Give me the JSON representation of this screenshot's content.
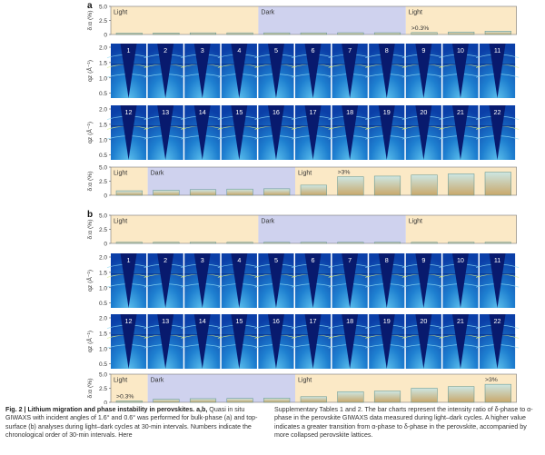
{
  "figure": {
    "panels": [
      {
        "label": "a",
        "top_bars": {
          "ylabel": "δ:α (%)",
          "yticks": [
            "5.0",
            "2.5",
            "0"
          ],
          "phases": [
            {
              "name": "Light",
              "start": 0,
              "end": 4,
              "color": "#fbe9c6"
            },
            {
              "name": "Dark",
              "start": 4,
              "end": 8,
              "color": "#cfd2ee"
            },
            {
              "name": "Light",
              "start": 8,
              "end": 11,
              "color": "#fbe9c6"
            }
          ],
          "annotation": {
            "text": ">0.3%",
            "index": 8
          },
          "values": [
            0.25,
            0.28,
            0.3,
            0.3,
            0.3,
            0.3,
            0.32,
            0.32,
            0.35,
            0.45,
            0.6
          ]
        },
        "image_rows": [
          {
            "ylabel": "qz (Å⁻¹)",
            "yticks": [
              "2.0",
              "1.5",
              "1.0",
              "0.5"
            ],
            "numbers": [
              "1",
              "2",
              "3",
              "4",
              "5",
              "6",
              "7",
              "8",
              "9",
              "10",
              "11"
            ]
          },
          {
            "ylabel": "qz (Å⁻¹)",
            "yticks": [
              "2.0",
              "1.5",
              "1.0",
              "0.5"
            ],
            "numbers": [
              "12",
              "13",
              "14",
              "15",
              "16",
              "17",
              "18",
              "19",
              "20",
              "21",
              "22"
            ]
          }
        ],
        "bottom_bars": {
          "ylabel": "δ:α (%)",
          "yticks": [
            "5.0",
            "2.5",
            "0"
          ],
          "phases": [
            {
              "name": "Light",
              "start": 0,
              "end": 1,
              "color": "#fbe9c6"
            },
            {
              "name": "Dark",
              "start": 1,
              "end": 5,
              "color": "#cfd2ee"
            },
            {
              "name": "Light",
              "start": 5,
              "end": 11,
              "color": "#fbe9c6"
            }
          ],
          "annotation": {
            "text": ">3%",
            "index": 6
          },
          "values": [
            0.8,
            0.9,
            1.0,
            1.1,
            1.15,
            1.8,
            3.3,
            3.4,
            3.6,
            3.8,
            4.1
          ]
        }
      },
      {
        "label": "b",
        "top_bars": {
          "ylabel": "δ:α (%)",
          "yticks": [
            "5.0",
            "2.5",
            "0"
          ],
          "phases": [
            {
              "name": "Light",
              "start": 0,
              "end": 4,
              "color": "#fbe9c6"
            },
            {
              "name": "Dark",
              "start": 4,
              "end": 8,
              "color": "#cfd2ee"
            },
            {
              "name": "Light",
              "start": 8,
              "end": 11,
              "color": "#fbe9c6"
            }
          ],
          "annotation": {
            "text": "",
            "index": 0
          },
          "values": [
            0.2,
            0.2,
            0.2,
            0.2,
            0.2,
            0.2,
            0.2,
            0.2,
            0.2,
            0.2,
            0.2
          ]
        },
        "image_rows": [
          {
            "ylabel": "qz (Å⁻¹)",
            "yticks": [
              "2.0",
              "1.5",
              "1.0",
              "0.5"
            ],
            "numbers": [
              "1",
              "2",
              "3",
              "4",
              "5",
              "6",
              "7",
              "8",
              "9",
              "10",
              "11"
            ]
          },
          {
            "ylabel": "qz (Å⁻¹)",
            "yticks": [
              "2.0",
              "1.5",
              "1.0",
              "0.5"
            ],
            "numbers": [
              "12",
              "13",
              "14",
              "15",
              "16",
              "17",
              "18",
              "19",
              "20",
              "21",
              "22"
            ]
          }
        ],
        "bottom_bars": {
          "ylabel": "δ:α (%)",
          "yticks": [
            "5.0",
            "2.5",
            "0"
          ],
          "phases": [
            {
              "name": "Light",
              "start": 0,
              "end": 1,
              "color": "#fbe9c6"
            },
            {
              "name": "Dark",
              "start": 1,
              "end": 5,
              "color": "#cfd2ee"
            },
            {
              "name": "Light",
              "start": 5,
              "end": 11,
              "color": "#fbe9c6"
            }
          ],
          "annotation": {
            "text": ">3%",
            "index": 10
          },
          "annotation2": {
            "text": ">0.3%",
            "index": 0
          },
          "values": [
            0.25,
            0.55,
            0.65,
            0.7,
            0.75,
            1.0,
            1.9,
            2.0,
            2.5,
            2.8,
            3.2
          ]
        }
      }
    ],
    "bar_gradient": {
      "top": "#cde6e2",
      "bottom": "#c9a86b",
      "stroke": "#5a8f8c"
    }
  },
  "caption": {
    "title": "Fig. 2 | Lithium migration and phase instability in perovskites. a,b,",
    "left_text": " Quasi in situ GIWAXS with incident angles of 1.6° and 0.6° was performed for bulk-phase (a) and top-surface (b) analyses during light–dark cycles at 30-min intervals. Numbers indicate the chronological order of 30-min intervals. Here",
    "right_text": "Supplementary Tables 1 and 2. The bar charts represent the intensity ratio of δ-phase to α-phase in the perovskite GIWAXS data measured during light–dark cycles. A higher value indicates a greater transition from α-phase to δ-phase in the perovskite, accompanied by more collapsed perovskite lattices."
  }
}
